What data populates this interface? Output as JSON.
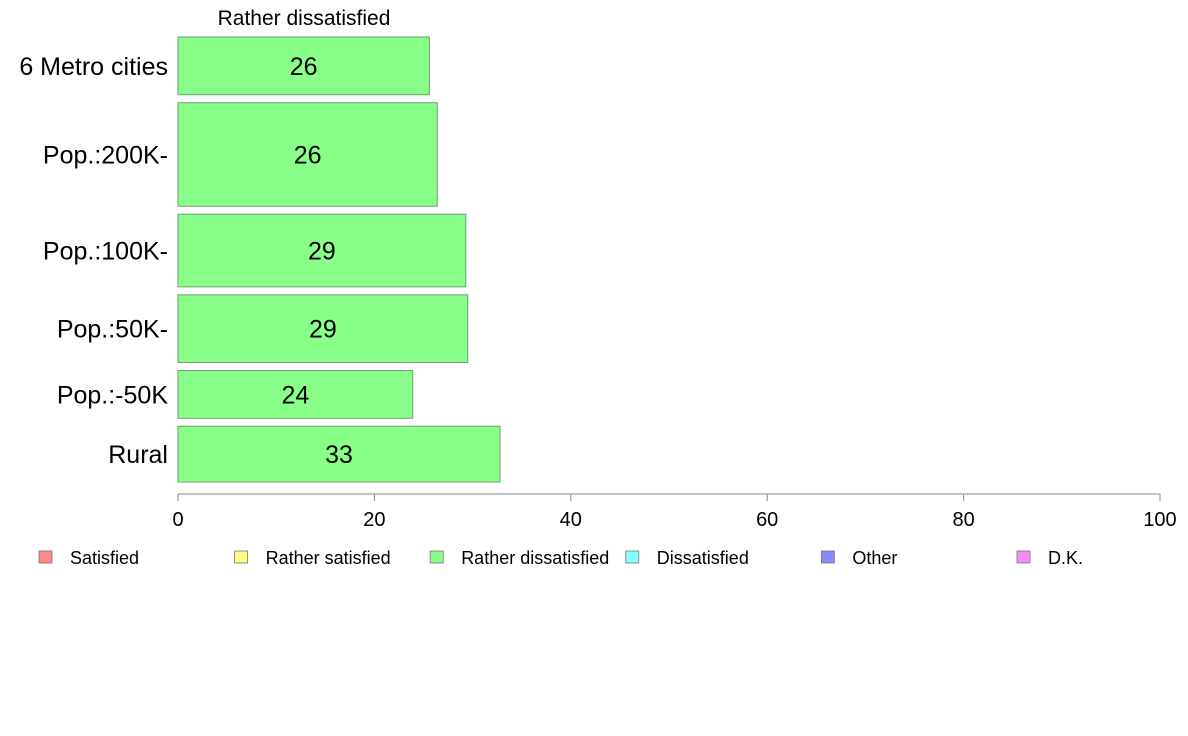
{
  "chart_data": {
    "type": "bar",
    "orientation": "horizontal",
    "title": "Rather dissatisfied",
    "categories": [
      "6 Metro cities",
      "Pop.:200K-",
      "Pop.:100K-",
      "Pop.:50K-",
      "Pop.:-50K",
      "Rural"
    ],
    "series": [
      {
        "name": "Rather dissatisfied",
        "values": [
          26,
          26,
          29,
          29,
          24,
          33
        ],
        "labels": [
          "26",
          "26",
          "29",
          "29",
          "24",
          "33"
        ],
        "value_estimates": [
          25.6,
          26.4,
          29.3,
          29.5,
          23.9,
          32.8
        ],
        "color": "#88ff88"
      }
    ],
    "bar_width_weights": [
      58,
      104,
      73,
      68,
      48,
      56
    ],
    "xlim": [
      0,
      100
    ],
    "xticks": [
      "0",
      "20",
      "40",
      "60",
      "80",
      "100"
    ],
    "xlabel": "",
    "ylabel": "",
    "grid": false,
    "legend": {
      "placement": "bottom",
      "items": [
        {
          "label": "Satisfied",
          "color": "#ff8888"
        },
        {
          "label": "Rather satisfied",
          "color": "#ffff88"
        },
        {
          "label": "Rather dissatisfied",
          "color": "#88ff88"
        },
        {
          "label": "Dissatisfied",
          "color": "#88ffff"
        },
        {
          "label": "Other",
          "color": "#8888ff"
        },
        {
          "label": "D.K.",
          "color": "#ff88ff"
        }
      ]
    }
  }
}
